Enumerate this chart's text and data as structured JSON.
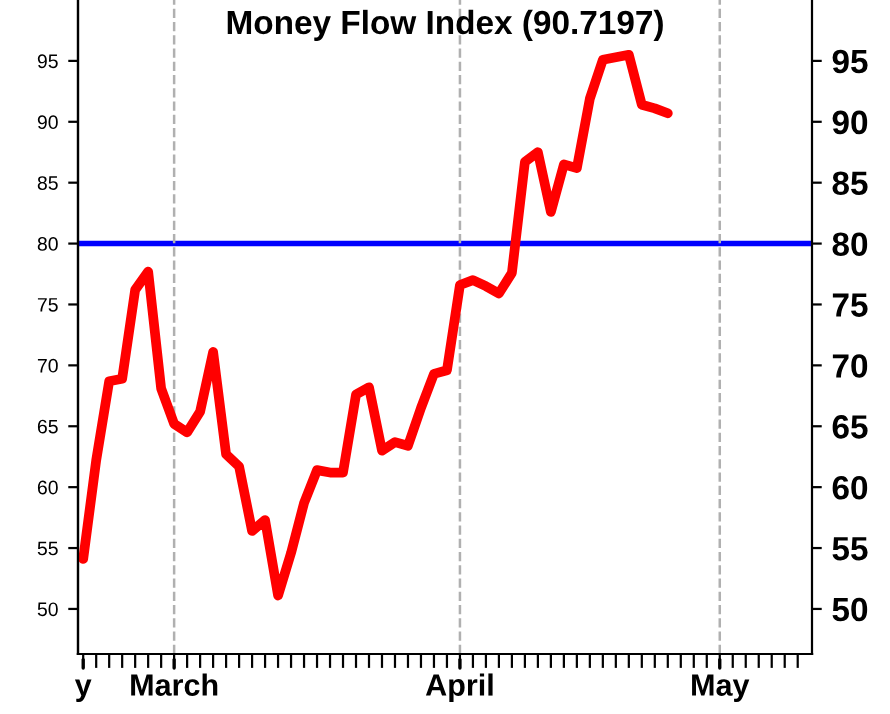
{
  "chart_data": {
    "type": "line",
    "title": "Money Flow Index (90.7197)",
    "categories": [
      "y",
      null,
      null,
      null,
      null,
      null,
      null,
      "March",
      null,
      null,
      null,
      null,
      null,
      null,
      null,
      null,
      null,
      null,
      null,
      null,
      null,
      null,
      null,
      null,
      null,
      null,
      null,
      null,
      null,
      "April",
      null,
      null,
      null,
      null,
      null,
      null,
      null,
      null,
      null,
      null,
      null,
      null,
      null,
      null,
      null,
      null,
      null,
      null,
      null,
      "May",
      null,
      null,
      null,
      null,
      null,
      null
    ],
    "series": [
      {
        "color": "#ff0000",
        "values": [
          54.1,
          62.2,
          68.7,
          68.9,
          76.2,
          77.7,
          68.1,
          65.2,
          64.5,
          66.2,
          71.1,
          62.7,
          61.7,
          56.4,
          57.3,
          51.1,
          54.6,
          58.7,
          61.4,
          61.2,
          61.2,
          67.6,
          68.2,
          63.0,
          63.7,
          63.4,
          66.5,
          69.3,
          69.6,
          76.6,
          77.0,
          76.5,
          75.9,
          77.6,
          86.7,
          87.5,
          82.6,
          86.5,
          86.2,
          91.9,
          95.1,
          95.3,
          95.5,
          91.4,
          91.1,
          90.7,
          null,
          null,
          null,
          null,
          null,
          null,
          null,
          null,
          null,
          null
        ]
      }
    ],
    "ylim": [
      46.3,
      100
    ],
    "yticks": [
      50,
      55,
      60,
      65,
      70,
      75,
      80,
      85,
      90,
      95
    ],
    "y2lim": [
      46.3,
      100
    ],
    "y2ticks": [
      50,
      55,
      60,
      65,
      70,
      75,
      80,
      85,
      90,
      95
    ],
    "ref_lines": [
      {
        "axis": "y",
        "value": 80,
        "color": "#0000ff",
        "line_style": "solid"
      },
      {
        "axis": "x",
        "value": "March",
        "color": "#b0b0b0",
        "line_style": "dashed"
      },
      {
        "axis": "x",
        "value": "April",
        "color": "#b0b0b0",
        "line_style": "dashed"
      },
      {
        "axis": "x",
        "value": "May",
        "color": "#b0b0b0",
        "line_style": "dashed"
      }
    ],
    "marker": "none",
    "line_style": "solid",
    "grid": false,
    "legend": false
  }
}
